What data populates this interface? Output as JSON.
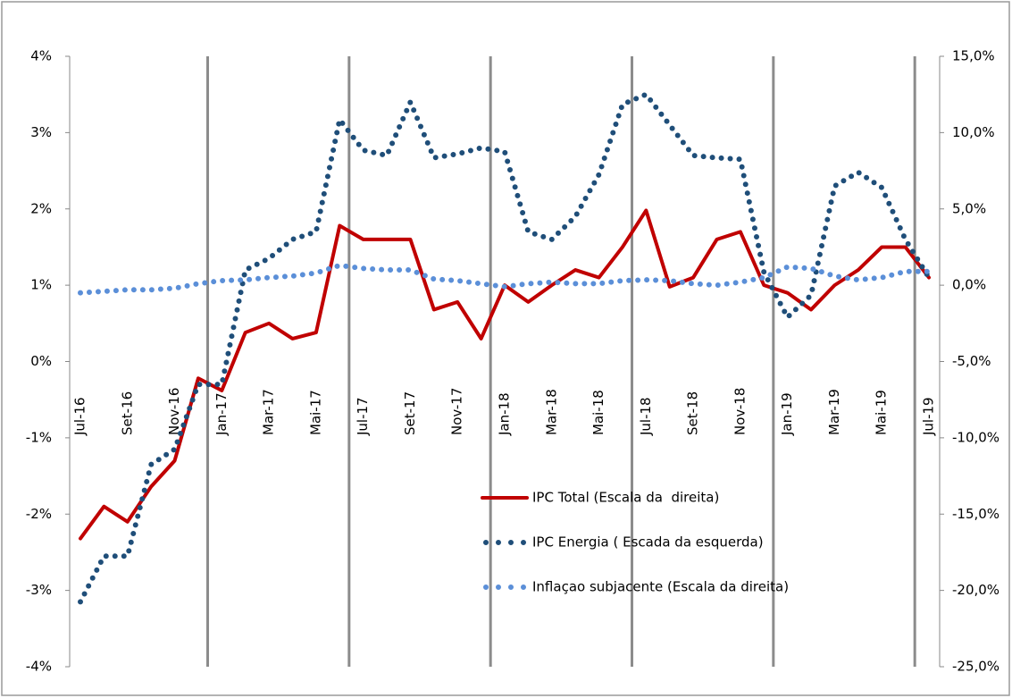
{
  "chart_data": {
    "type": "line",
    "categories": [
      "Jul-16",
      null,
      "Set-16",
      null,
      "Nov-16",
      null,
      "Jan-17",
      null,
      "Mar-17",
      null,
      "Mai-17",
      null,
      "Jul-17",
      null,
      "Set-17",
      null,
      "Nov-17",
      null,
      "Jan-18",
      null,
      "Mar-18",
      null,
      "Mai-18",
      null,
      "Jul-18",
      null,
      "Set-18",
      null,
      "Nov-18",
      null,
      "Jan-19",
      null,
      "Mar-19",
      null,
      "Mai-19",
      null,
      "Jul-19"
    ],
    "series": [
      {
        "name": "IPC Total (Escala da  direita)",
        "color": "#c00000",
        "linestyle": "solid",
        "axis": "y2",
        "values": [
          -16.6,
          -14.5,
          -15.5,
          -13.2,
          -11.5,
          -6.1,
          -6.9,
          -3.1,
          -2.5,
          -3.5,
          -3.1,
          3.9,
          3.0,
          3.0,
          3.0,
          -1.6,
          -1.1,
          -3.5,
          0.0,
          -1.1,
          0.0,
          1.0,
          0.5,
          2.5,
          4.9,
          -0.1,
          0.5,
          3.0,
          3.5,
          0.0,
          -0.5,
          -1.6,
          0.0,
          1.0,
          2.5,
          2.5,
          0.5
        ]
      },
      {
        "name": "IPC Energia ( Escada da esquerda)",
        "color": "#1f4e79",
        "linestyle": "dotted",
        "axis": "y",
        "values": [
          -3.15,
          -2.55,
          -2.55,
          -1.35,
          -1.15,
          -0.3,
          -0.3,
          1.2,
          1.35,
          1.6,
          1.7,
          3.17,
          2.77,
          2.7,
          3.4,
          2.67,
          2.72,
          2.8,
          2.75,
          1.7,
          1.6,
          1.9,
          2.45,
          3.37,
          3.5,
          3.1,
          2.7,
          2.67,
          2.65,
          1.17,
          0.58,
          0.87,
          2.3,
          2.48,
          2.28,
          1.6,
          1.1
        ]
      },
      {
        "name": "Inflaçao subjacente (Escala da direita)",
        "color": "#5b8fd8",
        "linestyle": "dotted",
        "axis": "y2",
        "values": [
          -0.5,
          -0.4,
          -0.3,
          -0.3,
          -0.2,
          0.1,
          0.3,
          0.35,
          0.5,
          0.6,
          0.8,
          1.3,
          1.1,
          1.0,
          1.0,
          0.4,
          0.3,
          0.1,
          -0.1,
          0.1,
          0.2,
          0.1,
          0.1,
          0.3,
          0.35,
          0.3,
          0.1,
          0.0,
          0.2,
          0.5,
          1.2,
          1.1,
          0.6,
          0.35,
          0.5,
          0.9,
          0.9
        ]
      }
    ],
    "ylim": [
      -4,
      4
    ],
    "yticks": [
      {
        "value": 4,
        "label": "4%"
      },
      {
        "value": 3,
        "label": "3%"
      },
      {
        "value": 2,
        "label": "2%"
      },
      {
        "value": 1,
        "label": "1%"
      },
      {
        "value": 0,
        "label": "0%"
      },
      {
        "value": -1,
        "label": "-1%"
      },
      {
        "value": -2,
        "label": "-2%"
      },
      {
        "value": -3,
        "label": "-3%"
      },
      {
        "value": -4,
        "label": "-4%"
      }
    ],
    "y2lim": [
      -25,
      15
    ],
    "y2ticks": [
      {
        "value": 15,
        "label": "15,0%"
      },
      {
        "value": 10,
        "label": "10,0%"
      },
      {
        "value": 5,
        "label": "5,0%"
      },
      {
        "value": 0,
        "label": "0,0%"
      },
      {
        "value": -5,
        "label": "-5,0%"
      },
      {
        "value": -10,
        "label": "-10,0%"
      },
      {
        "value": -15,
        "label": "-15,0%"
      },
      {
        "value": -20,
        "label": "-20,0%"
      },
      {
        "value": -25,
        "label": "-25,0%"
      }
    ],
    "grid": false
  }
}
